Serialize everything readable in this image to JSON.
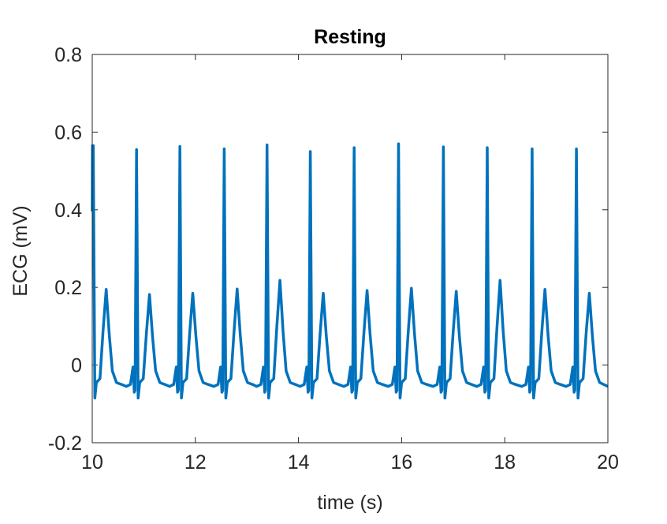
{
  "chart_data": {
    "type": "line",
    "title": "Resting",
    "xlabel": "time (s)",
    "ylabel": "ECG (mV)",
    "xlim": [
      10,
      20
    ],
    "ylim": [
      -0.2,
      0.8
    ],
    "xticks": [
      10,
      12,
      14,
      16,
      18,
      20
    ],
    "yticks": [
      -0.2,
      0,
      0.2,
      0.4,
      0.6,
      0.8
    ],
    "xtick_labels": [
      "10",
      "12",
      "14",
      "16",
      "18",
      "20"
    ],
    "ytick_labels": [
      "-0.2",
      "0",
      "0.2",
      "0.4",
      "0.6",
      "0.8"
    ],
    "grid": false,
    "line_color": "#0072BD",
    "series": [
      {
        "beats": [
          {
            "r_time": 10.02,
            "r_peak": 0.565,
            "t_peak": 0.195
          },
          {
            "r_time": 10.86,
            "r_peak": 0.555,
            "t_peak": 0.182
          },
          {
            "r_time": 11.7,
            "r_peak": 0.563,
            "t_peak": 0.185
          },
          {
            "r_time": 12.56,
            "r_peak": 0.557,
            "t_peak": 0.196
          },
          {
            "r_time": 13.39,
            "r_peak": 0.567,
            "t_peak": 0.218
          },
          {
            "r_time": 14.23,
            "r_peak": 0.55,
            "t_peak": 0.185
          },
          {
            "r_time": 15.08,
            "r_peak": 0.56,
            "t_peak": 0.192
          },
          {
            "r_time": 15.94,
            "r_peak": 0.57,
            "t_peak": 0.198
          },
          {
            "r_time": 16.81,
            "r_peak": 0.562,
            "t_peak": 0.19
          },
          {
            "r_time": 17.66,
            "r_peak": 0.56,
            "t_peak": 0.218
          },
          {
            "r_time": 18.53,
            "r_peak": 0.557,
            "t_peak": 0.195
          },
          {
            "r_time": 19.39,
            "r_peak": 0.557,
            "t_peak": 0.185
          }
        ],
        "baseline": -0.045,
        "s_trough": -0.085,
        "p_peak": -0.005,
        "end_value": -0.055
      }
    ]
  }
}
